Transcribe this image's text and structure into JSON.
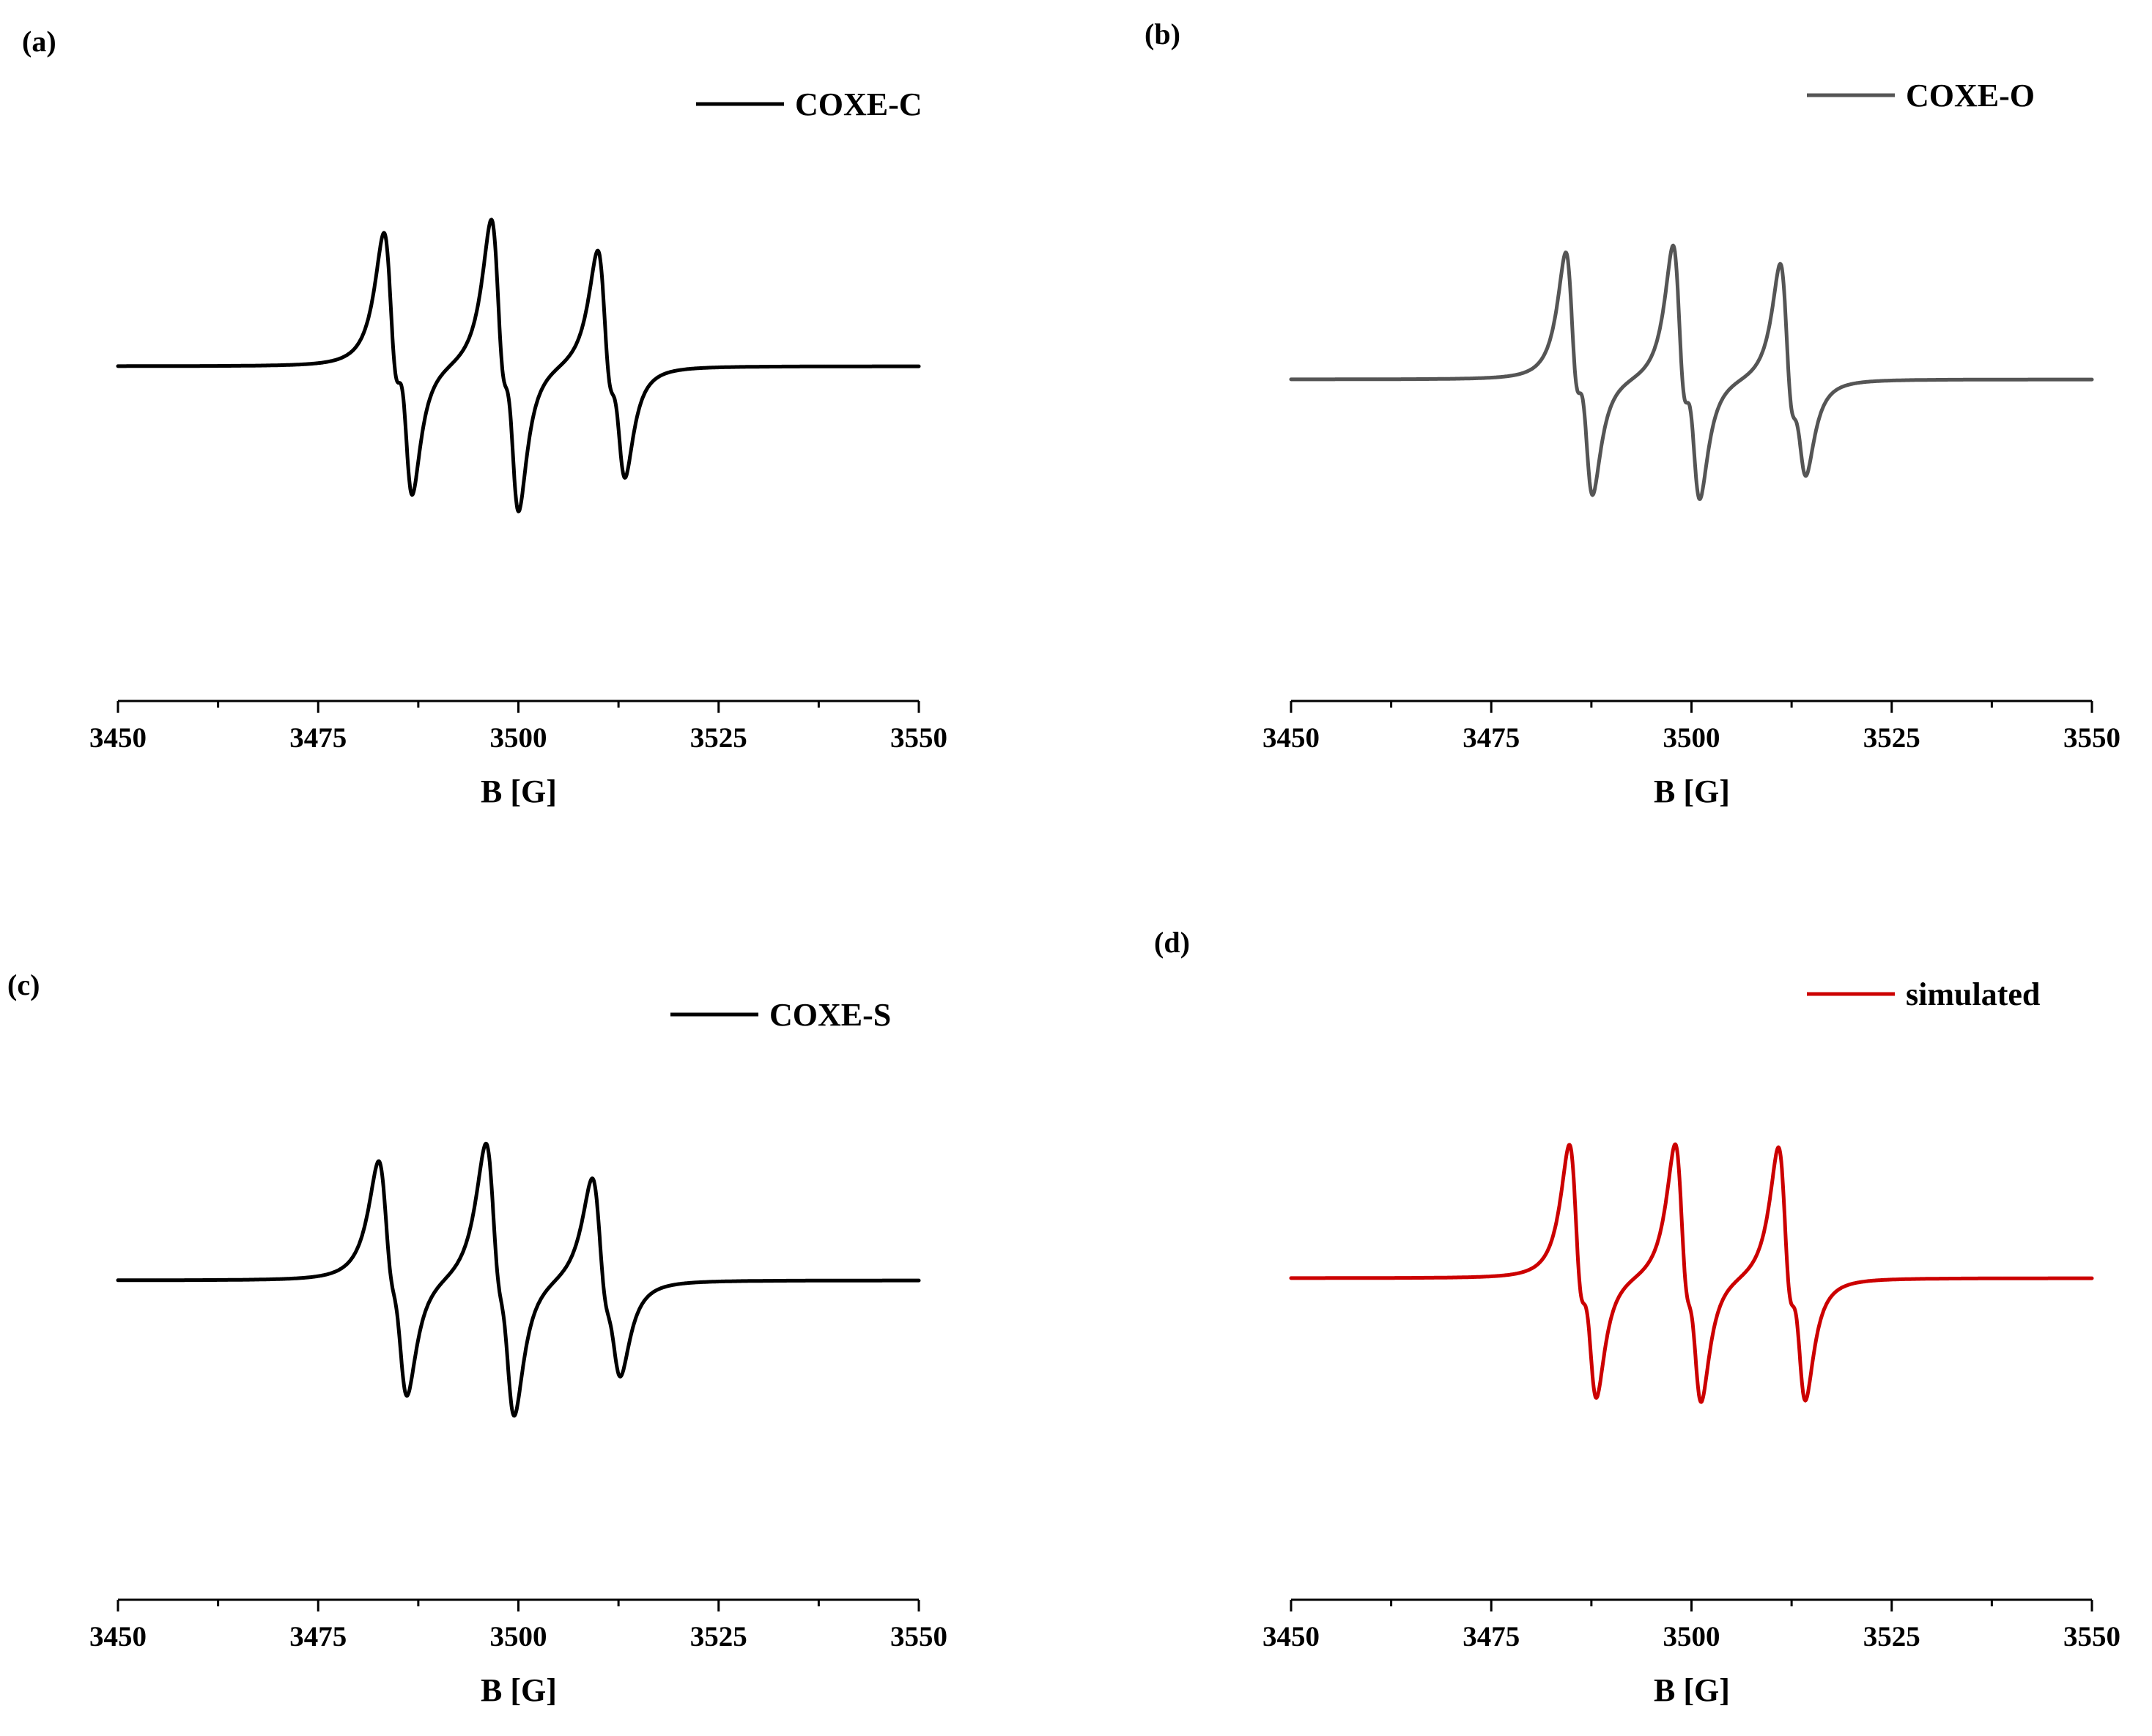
{
  "chart_data": [
    {
      "type": "line",
      "panel_label": "(a)",
      "xlabel": "B [G]",
      "ylabel": "",
      "xlim": [
        3450,
        3550
      ],
      "xticks": [
        3450,
        3475,
        3500,
        3525,
        3550
      ],
      "legend": "top-right",
      "series": [
        {
          "name": "COXE-C",
          "color": "#000000",
          "baseline": 0,
          "peaks": [
            {
              "x": 3484.1,
              "amplitude": 1.0,
              "width": 1.0
            },
            {
              "x": 3486.0,
              "amplitude": 0.83,
              "width": 0.9
            },
            {
              "x": 3497.5,
              "amplitude": 1.1,
              "width": 1.0
            },
            {
              "x": 3499.3,
              "amplitude": 0.9,
              "width": 0.9
            },
            {
              "x": 3510.8,
              "amplitude": 0.9,
              "width": 1.0
            },
            {
              "x": 3512.6,
              "amplitude": 0.65,
              "width": 0.9
            }
          ]
        }
      ]
    },
    {
      "type": "line",
      "panel_label": "(b)",
      "xlabel": "B [G]",
      "ylabel": "",
      "xlim": [
        3450,
        3550
      ],
      "xticks": [
        3450,
        3475,
        3500,
        3525,
        3550
      ],
      "legend": "top-right",
      "series": [
        {
          "name": "COXE-O",
          "color": "#555555",
          "baseline": 0,
          "peaks": [
            {
              "x": 3485.1,
              "amplitude": 0.92,
              "width": 0.9
            },
            {
              "x": 3486.9,
              "amplitude": 0.78,
              "width": 0.9
            },
            {
              "x": 3498.5,
              "amplitude": 1.0,
              "width": 0.9
            },
            {
              "x": 3500.3,
              "amplitude": 0.78,
              "width": 0.9
            },
            {
              "x": 3511.9,
              "amplitude": 0.9,
              "width": 0.9
            },
            {
              "x": 3513.6,
              "amplitude": 0.55,
              "width": 0.9
            }
          ]
        }
      ]
    },
    {
      "type": "line",
      "panel_label": "(c)",
      "xlabel": "B [G]",
      "ylabel": "",
      "xlim": [
        3450,
        3550
      ],
      "xticks": [
        3450,
        3475,
        3500,
        3525,
        3550
      ],
      "legend": "top-right",
      "series": [
        {
          "name": "COXE-S",
          "color": "#000000",
          "baseline": 0,
          "peaks": [
            {
              "x": 3483.5,
              "amplitude": 0.85,
              "width": 1.1
            },
            {
              "x": 3485.3,
              "amplitude": 0.7,
              "width": 1.0
            },
            {
              "x": 3496.9,
              "amplitude": 1.0,
              "width": 1.1
            },
            {
              "x": 3498.7,
              "amplitude": 0.8,
              "width": 1.0
            },
            {
              "x": 3510.2,
              "amplitude": 0.8,
              "width": 1.1
            },
            {
              "x": 3512.0,
              "amplitude": 0.5,
              "width": 1.0
            }
          ]
        }
      ]
    },
    {
      "type": "line",
      "panel_label": "(d)",
      "xlabel": "B [G]",
      "ylabel": "",
      "xlim": [
        3450,
        3550
      ],
      "xticks": [
        3450,
        3475,
        3500,
        3525,
        3550
      ],
      "legend": "top-right",
      "series": [
        {
          "name": "simulated",
          "color": "#cc0000",
          "baseline": 0,
          "peaks": [
            {
              "x": 3485.6,
              "amplitude": 1.0,
              "width": 0.95
            },
            {
              "x": 3487.4,
              "amplitude": 0.75,
              "width": 0.9
            },
            {
              "x": 3498.8,
              "amplitude": 1.0,
              "width": 0.95
            },
            {
              "x": 3500.5,
              "amplitude": 0.75,
              "width": 0.9
            },
            {
              "x": 3511.7,
              "amplitude": 1.0,
              "width": 0.95
            },
            {
              "x": 3513.5,
              "amplitude": 0.75,
              "width": 0.9
            }
          ]
        }
      ]
    }
  ]
}
